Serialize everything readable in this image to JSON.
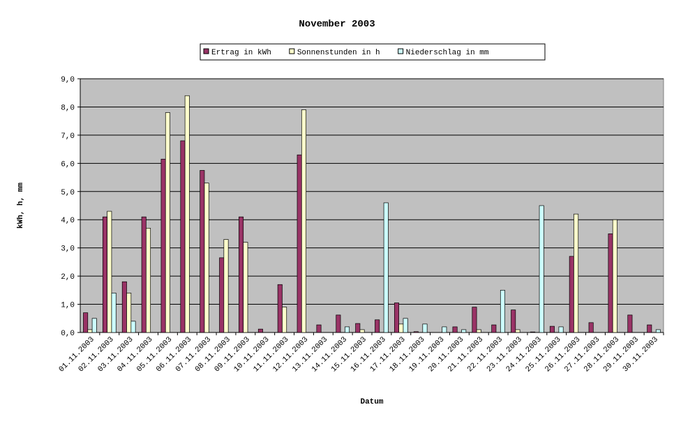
{
  "chart_data": {
    "type": "bar",
    "title": "November 2003",
    "x_label": "Datum",
    "y_label": "kWh, h, mm",
    "categories": [
      "01.11.2003",
      "02.11.2003",
      "03.11.2003",
      "04.11.2003",
      "05.11.2003",
      "06.11.2003",
      "07.11.2003",
      "08.11.2003",
      "09.11.2003",
      "10.11.2003",
      "11.11.2003",
      "12.11.2003",
      "13.11.2003",
      "14.11.2003",
      "15.11.2003",
      "16.11.2003",
      "17.11.2003",
      "18.11.2003",
      "19.11.2003",
      "20.11.2003",
      "21.11.2003",
      "22.11.2003",
      "23.11.2003",
      "24.11.2003",
      "25.11.2003",
      "26.11.2003",
      "27.11.2003",
      "28.11.2003",
      "29.11.2003",
      "30.11.2003"
    ],
    "series": [
      {
        "name": "Ertrag in kWh",
        "color": "#993366",
        "values": [
          0.7,
          4.1,
          1.8,
          4.1,
          6.15,
          6.8,
          5.75,
          2.65,
          4.1,
          0.12,
          1.7,
          6.3,
          0.27,
          0.62,
          0.32,
          0.45,
          1.05,
          0.03,
          0,
          0.2,
          0.9,
          0.27,
          0.8,
          0.02,
          0.22,
          2.7,
          0.35,
          3.5,
          0.62,
          0.27
        ]
      },
      {
        "name": "Sonnenstunden in h",
        "color": "#ffffcc",
        "values": [
          0.1,
          4.3,
          1.4,
          3.7,
          7.8,
          8.4,
          5.3,
          3.3,
          3.2,
          0,
          0.9,
          7.9,
          0,
          0,
          0.1,
          0,
          0.3,
          0,
          0,
          0,
          0.1,
          0,
          0.1,
          0,
          0,
          4.2,
          0,
          4.0,
          0,
          0
        ]
      },
      {
        "name": "Niederschlag in mm",
        "color": "#ccffff",
        "values": [
          0.5,
          1.4,
          0.4,
          0,
          0,
          0,
          0,
          0,
          0,
          0,
          0,
          0,
          0,
          0.2,
          0,
          4.6,
          0.5,
          0.3,
          0.2,
          0.1,
          0,
          1.5,
          0,
          4.5,
          0.2,
          0,
          0,
          0,
          0,
          0.1
        ]
      }
    ],
    "ylim": [
      0,
      9
    ],
    "yticks": [
      {
        "value": 0,
        "label": "0,0"
      },
      {
        "value": 1,
        "label": "1,0"
      },
      {
        "value": 2,
        "label": "2,0"
      },
      {
        "value": 3,
        "label": "3,0"
      },
      {
        "value": 4,
        "label": "4,0"
      },
      {
        "value": 5,
        "label": "5,0"
      },
      {
        "value": 6,
        "label": "6,0"
      },
      {
        "value": 7,
        "label": "7,0"
      },
      {
        "value": 8,
        "label": "8,0"
      },
      {
        "value": 9,
        "label": "9,0"
      }
    ],
    "grid": true,
    "plot_background": "#c0c0c0",
    "legend": "top"
  }
}
